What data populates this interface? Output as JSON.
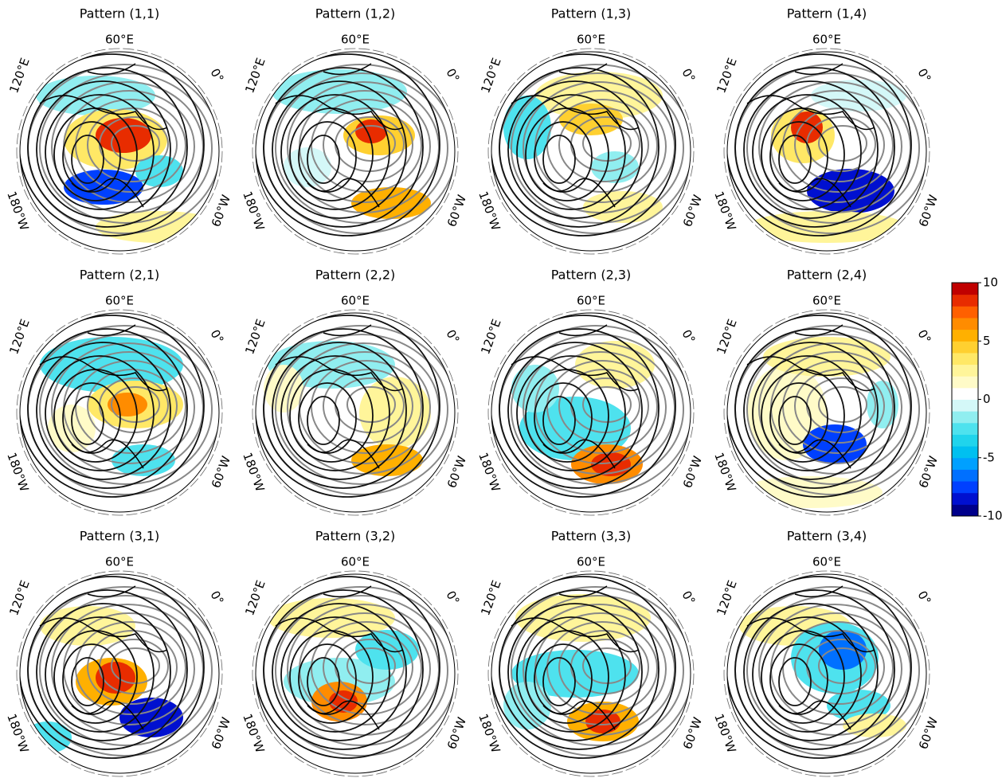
{
  "panels": [
    {
      "title": "Pattern (1,1)"
    },
    {
      "title": "Pattern (1,2)"
    },
    {
      "title": "Pattern (1,3)"
    },
    {
      "title": "Pattern (1,4)"
    },
    {
      "title": "Pattern (2,1)"
    },
    {
      "title": "Pattern (2,2)"
    },
    {
      "title": "Pattern (2,3)"
    },
    {
      "title": "Pattern (2,4)"
    },
    {
      "title": "Pattern (3,1)"
    },
    {
      "title": "Pattern (3,2)"
    },
    {
      "title": "Pattern (3,3)"
    },
    {
      "title": "Pattern (3,4)"
    }
  ],
  "longitude_labels": [
    "60°E",
    "120°E",
    "0°",
    "180°W",
    "60°W"
  ],
  "colorbar": {
    "lim": [
      -10,
      10
    ],
    "ticks": [
      10,
      5,
      0,
      -5,
      -10
    ],
    "colors": [
      "#00008b",
      "#0010d0",
      "#0040ff",
      "#0070ff",
      "#00a0ff",
      "#00c0f0",
      "#20d4ec",
      "#4ee2ee",
      "#90eef0",
      "#d4f8f8",
      "#ffffff",
      "#fffbc8",
      "#fff59a",
      "#ffe866",
      "#ffd030",
      "#ffb000",
      "#ff8c00",
      "#ff6000",
      "#e82c00",
      "#c00000"
    ]
  }
}
